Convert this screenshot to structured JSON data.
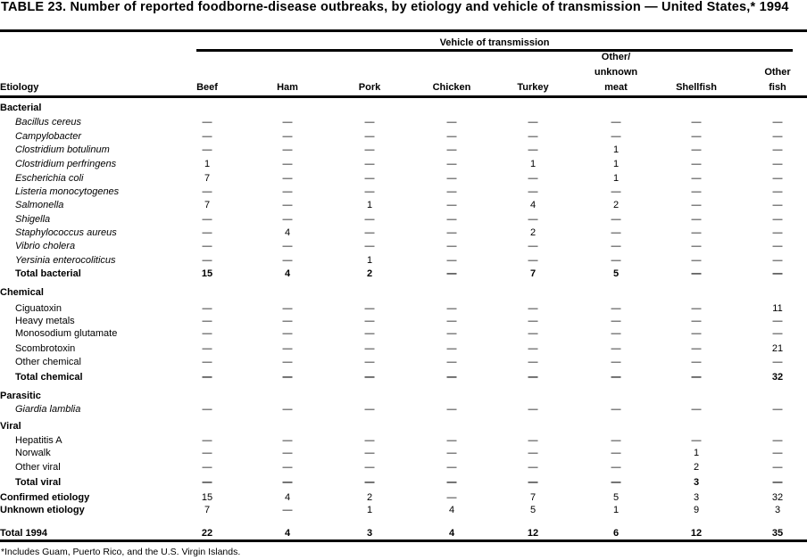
{
  "title": "TABLE 23. Number of reported foodborne-disease  outbreaks, by etiology and vehicle of transmission — United States,* 1994",
  "header": {
    "etiology": "Etiology",
    "spanner": "Vehicle of transmission",
    "columns": [
      {
        "lines": [
          "Beef"
        ]
      },
      {
        "lines": [
          "Ham"
        ]
      },
      {
        "lines": [
          "Pork"
        ]
      },
      {
        "lines": [
          "Chicken"
        ]
      },
      {
        "lines": [
          "Turkey"
        ]
      },
      {
        "lines": [
          "Other/",
          "unknown",
          "meat"
        ]
      },
      {
        "lines": [
          "Shellfish"
        ]
      },
      {
        "lines": [
          "Other",
          "fish"
        ]
      }
    ]
  },
  "rows": [
    {
      "label": "Bacterial",
      "type": "group",
      "values": []
    },
    {
      "label": "Bacillus cereus",
      "type": "item",
      "italic": true,
      "values": [
        "—",
        "—",
        "—",
        "—",
        "—",
        "—",
        "—",
        "—"
      ]
    },
    {
      "label": "Campylobacter",
      "type": "item",
      "italic": true,
      "values": [
        "—",
        "—",
        "—",
        "—",
        "—",
        "—",
        "—",
        "—"
      ]
    },
    {
      "label": "Clostridium botulinum",
      "type": "item",
      "italic": true,
      "values": [
        "—",
        "—",
        "—",
        "—",
        "—",
        "1",
        "—",
        "—"
      ]
    },
    {
      "label": "Clostridium perfringens",
      "type": "item",
      "italic": true,
      "values": [
        "1",
        "—",
        "—",
        "—",
        "1",
        "1",
        "—",
        "—"
      ]
    },
    {
      "label": "Escherichia coli",
      "type": "item",
      "italic": true,
      "values": [
        "7",
        "—",
        "—",
        "—",
        "—",
        "1",
        "—",
        "—"
      ]
    },
    {
      "label": "Listeria monocytogenes",
      "type": "item",
      "italic": true,
      "values": [
        "—",
        "—",
        "—",
        "—",
        "—",
        "—",
        "—",
        "—"
      ]
    },
    {
      "label": "Salmonella",
      "type": "item",
      "italic": true,
      "values": [
        "7",
        "—",
        "1",
        "—",
        "4",
        "2",
        "—",
        "—"
      ]
    },
    {
      "label": "Shigella",
      "type": "item",
      "italic": true,
      "values": [
        "—",
        "—",
        "—",
        "—",
        "—",
        "—",
        "—",
        "—"
      ]
    },
    {
      "label": "Staphylococcus aureus",
      "type": "item",
      "italic": true,
      "values": [
        "—",
        "4",
        "—",
        "—",
        "2",
        "—",
        "—",
        "—"
      ]
    },
    {
      "label": "Vibrio cholera",
      "type": "item",
      "italic": true,
      "values": [
        "—",
        "—",
        "—",
        "—",
        "—",
        "—",
        "—",
        "—"
      ]
    },
    {
      "label": "Yersinia enterocoliticus",
      "type": "item",
      "italic": true,
      "values": [
        "—",
        "—",
        "1",
        "—",
        "—",
        "—",
        "—",
        "—"
      ]
    },
    {
      "label": "Total bacterial",
      "type": "total",
      "values": [
        "15",
        "4",
        "2",
        "—",
        "7",
        "5",
        "—",
        "—"
      ]
    },
    {
      "label": "Chemical",
      "type": "group",
      "values": []
    },
    {
      "label": "Ciguatoxin",
      "type": "item",
      "values": [
        "—",
        "—",
        "—",
        "—",
        "—",
        "—",
        "—",
        "11"
      ]
    },
    {
      "label": "Heavy metals",
      "type": "item",
      "values": [
        "—",
        "—",
        "—",
        "—",
        "—",
        "—",
        "—",
        "—"
      ]
    },
    {
      "label": "Monosodium glutamate",
      "type": "item",
      "values": [
        "—",
        "—",
        "—",
        "—",
        "—",
        "—",
        "—",
        "—"
      ]
    },
    {
      "label": "Scombrotoxin",
      "type": "item",
      "values": [
        "—",
        "—",
        "—",
        "—",
        "—",
        "—",
        "—",
        "21"
      ]
    },
    {
      "label": "Other chemical",
      "type": "item",
      "values": [
        "—",
        "—",
        "—",
        "—",
        "—",
        "—",
        "—",
        "—"
      ]
    },
    {
      "label": "Total chemical",
      "type": "total",
      "values": [
        "—",
        "—",
        "—",
        "—",
        "—",
        "—",
        "—",
        "32"
      ]
    },
    {
      "label": "Parasitic",
      "type": "group",
      "values": []
    },
    {
      "label": "Giardia lamblia",
      "type": "item",
      "italic": true,
      "values": [
        "—",
        "—",
        "—",
        "—",
        "—",
        "—",
        "—",
        "—"
      ]
    },
    {
      "label": "Viral",
      "type": "group",
      "values": []
    },
    {
      "label": "Hepatitis A",
      "type": "item",
      "values": [
        "—",
        "—",
        "—",
        "—",
        "—",
        "—",
        "—",
        "—"
      ]
    },
    {
      "label": "Norwalk",
      "type": "item",
      "values": [
        "—",
        "—",
        "—",
        "—",
        "—",
        "—",
        "1",
        "—"
      ]
    },
    {
      "label": "Other viral",
      "type": "item",
      "values": [
        "—",
        "—",
        "—",
        "—",
        "—",
        "—",
        "2",
        "—"
      ]
    },
    {
      "label": "Total viral",
      "type": "total",
      "values": [
        "—",
        "—",
        "—",
        "—",
        "—",
        "—",
        "3",
        "—"
      ]
    },
    {
      "label": "Confirmed etiology",
      "type": "summary",
      "values": [
        "15",
        "4",
        "2",
        "—",
        "7",
        "5",
        "3",
        "32"
      ]
    },
    {
      "label": "Unknown etiology",
      "type": "summary",
      "values": [
        "7",
        "—",
        "1",
        "4",
        "5",
        "1",
        "9",
        "3"
      ]
    },
    {
      "label": "Total 1994",
      "type": "summary grand",
      "values": [
        "22",
        "4",
        "3",
        "4",
        "12",
        "6",
        "12",
        "35"
      ]
    }
  ],
  "footnote": "*Includes Guam, Puerto Rico, and the U.S. Virgin Islands."
}
